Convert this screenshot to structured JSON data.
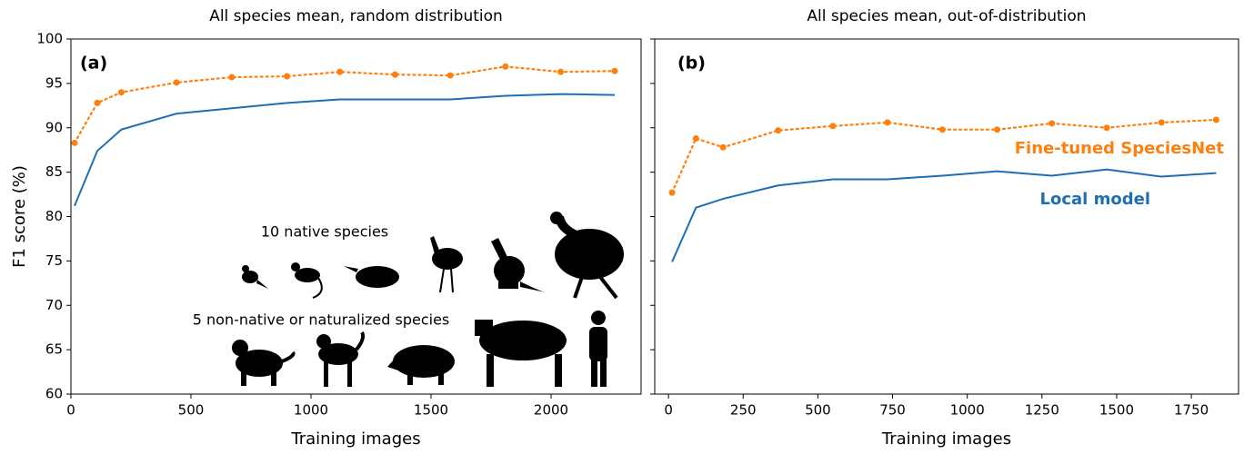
{
  "chart_data": [
    {
      "type": "line",
      "title": "All species mean, random distribution",
      "xlabel": "Training images",
      "ylabel": "F1 score (%)",
      "x": [
        15,
        110,
        210,
        440,
        670,
        900,
        1120,
        1350,
        1580,
        1810,
        2040,
        2265
      ],
      "series": [
        {
          "color": "#ff7f0e",
          "style": "dotted",
          "values": [
            88.3,
            92.8,
            94.0,
            95.1,
            95.7,
            95.8,
            96.3,
            96.0,
            95.9,
            96.9,
            96.3,
            96.4
          ]
        },
        {
          "color": "#1f6eb4",
          "style": "solid",
          "values": [
            81.2,
            87.4,
            89.8,
            91.6,
            92.2,
            92.8,
            93.2,
            93.2,
            93.2,
            93.6,
            93.8,
            93.7
          ]
        }
      ],
      "xlim": [
        0,
        2375
      ],
      "ylim": [
        60,
        100
      ],
      "xticks": [
        0,
        500,
        1000,
        1500,
        2000
      ],
      "yticks": [
        60,
        65,
        70,
        75,
        80,
        85,
        90,
        95,
        100
      ],
      "annotations": [
        "(a)",
        "10 native species",
        "5 non-native or naturalized species"
      ]
    },
    {
      "type": "line",
      "title": "All species mean, out-of-distribution",
      "xlabel": "Training images",
      "x": [
        12,
        92,
        183,
        367,
        550,
        733,
        917,
        1100,
        1283,
        1467,
        1650,
        1833
      ],
      "series": [
        {
          "name": "Fine-tuned SpeciesNet",
          "color": "#ff7f0e",
          "style": "dotted",
          "values": [
            82.7,
            88.8,
            87.8,
            89.7,
            90.2,
            90.6,
            89.8,
            89.8,
            90.5,
            90.0,
            90.6,
            90.9
          ]
        },
        {
          "name": "Local model",
          "color": "#1f6eb4",
          "style": "solid",
          "values": [
            74.9,
            81.0,
            82.0,
            83.5,
            84.2,
            84.2,
            84.6,
            85.1,
            84.6,
            85.3,
            84.5,
            84.9
          ]
        }
      ],
      "xlim": [
        -46,
        1908
      ],
      "ylim": [
        60,
        100
      ],
      "xticks": [
        0,
        250,
        500,
        750,
        1000,
        1250,
        1500,
        1750
      ],
      "yticks": [
        60,
        65,
        70,
        75,
        80,
        85,
        90,
        95,
        100
      ],
      "annotations": [
        "(b)"
      ]
    }
  ]
}
